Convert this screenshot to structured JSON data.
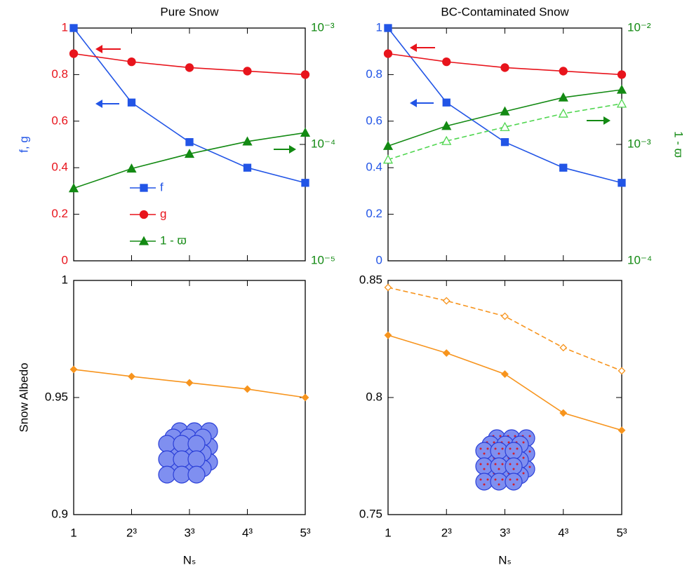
{
  "chart_data": [
    {
      "type": "line",
      "title": "Pure Snow",
      "y_label": "f, g",
      "y_label_color": "#2255e6",
      "ylim": [
        0,
        1
      ],
      "yticks": [
        0,
        0.2,
        0.4,
        0.6,
        0.8,
        1
      ],
      "ytick_color": "#e8141c",
      "y2lim": [
        1e-05,
        0.001
      ],
      "y2_log": true,
      "y2tick_color": "#138a13",
      "y2ticks": [
        {
          "value": 1e-05,
          "label": "10⁻⁵"
        },
        {
          "value": 0.0001,
          "label": "10⁻⁴"
        },
        {
          "value": 0.001,
          "label": "10⁻³"
        }
      ],
      "legend": "lower-left",
      "series": [
        {
          "name": "f",
          "color": "#2255e6",
          "marker": "square",
          "values": [
            1,
            0.68,
            0.51,
            0.4,
            0.335
          ]
        },
        {
          "name": "g",
          "color": "#e8141c",
          "marker": "circle",
          "values": [
            0.89,
            0.855,
            0.83,
            0.815,
            0.8
          ]
        },
        {
          "name": "1 - ϖ",
          "color": "#138a13",
          "marker": "triangle",
          "axis": "y2",
          "values": [
            4.2e-05,
            6.2e-05,
            8.3e-05,
            0.000106,
            0.000126
          ]
        }
      ]
    },
    {
      "type": "line",
      "title": "BC-Contaminated Snow",
      "y2_label": "1 - ϖ",
      "y2_label_color": "#138a13",
      "ylim": [
        0,
        1
      ],
      "yticks": [
        0,
        0.2,
        0.4,
        0.6,
        0.8,
        1
      ],
      "ytick_color": "#2255e6",
      "y2lim": [
        0.0001,
        0.01
      ],
      "y2_log": true,
      "y2tick_color": "#138a13",
      "y2ticks": [
        {
          "value": 0.0001,
          "label": "10⁻⁴"
        },
        {
          "value": 0.001,
          "label": "10⁻³"
        },
        {
          "value": 0.01,
          "label": "10⁻²"
        }
      ],
      "series": [
        {
          "color": "#2255e6",
          "marker": "square",
          "values": [
            1,
            0.68,
            0.51,
            0.4,
            0.335
          ]
        },
        {
          "color": "#e8141c",
          "marker": "circle",
          "values": [
            0.89,
            0.855,
            0.83,
            0.815,
            0.8
          ]
        },
        {
          "color": "#138a13",
          "marker": "triangle",
          "axis": "y2",
          "values": [
            0.00097,
            0.00144,
            0.00192,
            0.00253,
            0.00295
          ]
        },
        {
          "color": "#4fd64f",
          "marker": "triangle",
          "filled": false,
          "dash": true,
          "axis": "y2",
          "values": [
            0.00074,
            0.00107,
            0.00141,
            0.00184,
            0.00224
          ]
        }
      ]
    },
    {
      "type": "line",
      "x_label": "Nₛ",
      "y_label": "Snow Albedo",
      "y_label_color": "#000000",
      "categories": [
        "1",
        "2³",
        "3³",
        "4³",
        "5³"
      ],
      "ylim": [
        0.9,
        1
      ],
      "yticks": [
        0.9,
        0.95,
        1
      ],
      "ytick_color": "#000000",
      "series": [
        {
          "color": "#f7941d",
          "marker": "diamond",
          "values": [
            0.962,
            0.959,
            0.9563,
            0.9536,
            0.95
          ]
        }
      ]
    },
    {
      "type": "line",
      "x_label": "Nₛ",
      "categories": [
        "1",
        "2³",
        "3³",
        "4³",
        "5³"
      ],
      "ylim": [
        0.75,
        0.85
      ],
      "yticks": [
        0.75,
        0.8,
        0.85
      ],
      "ytick_color": "#000000",
      "series": [
        {
          "color": "#f7941d",
          "marker": "diamond",
          "values": [
            0.8266,
            0.819,
            0.81,
            0.7934,
            0.786
          ]
        },
        {
          "color": "#f7941d",
          "marker": "diamond",
          "filled": false,
          "dash": true,
          "values": [
            0.847,
            0.8413,
            0.8347,
            0.8213,
            0.8114
          ]
        }
      ]
    }
  ]
}
